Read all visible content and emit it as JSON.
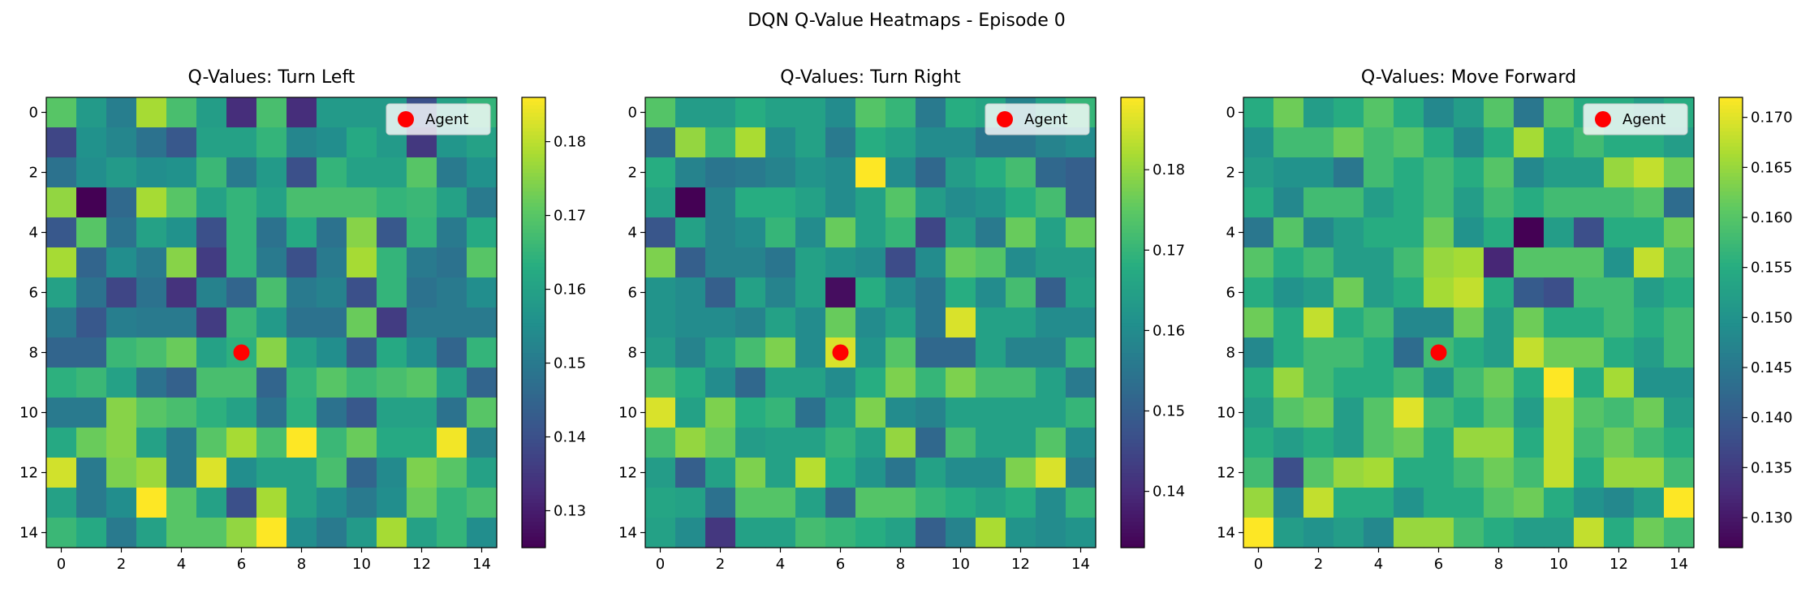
{
  "figure": {
    "title": "DQN Q-Value Heatmaps - Episode 0"
  },
  "chart_data": [
    {
      "type": "heatmap",
      "title": "Q-Values: Turn Left",
      "colormap": "viridis",
      "x_ticks": [
        0,
        2,
        4,
        6,
        8,
        10,
        12,
        14
      ],
      "y_ticks": [
        0,
        2,
        4,
        6,
        8,
        10,
        12,
        14
      ],
      "xlim": [
        -0.5,
        14.5
      ],
      "ylim": [
        14.5,
        -0.5
      ],
      "colorbar": {
        "min": 0.125,
        "max": 0.186,
        "ticks": [
          0.13,
          0.14,
          0.15,
          0.16,
          0.17,
          0.18
        ],
        "tick_labels": [
          "0.13",
          "0.14",
          "0.15",
          "0.16",
          "0.17",
          "0.18"
        ]
      },
      "agent": {
        "x": 6,
        "y": 8,
        "color": "#ff0000"
      },
      "legend": {
        "label": "Agent",
        "position": "upper right"
      },
      "grid": [
        [
          0.17,
          0.158,
          0.151,
          0.178,
          0.168,
          0.159,
          0.133,
          0.168,
          0.133,
          0.158,
          0.158,
          0.158,
          0.14,
          0.16,
          0.165
        ],
        [
          0.138,
          0.156,
          0.153,
          0.148,
          0.142,
          0.16,
          0.16,
          0.165,
          0.153,
          0.155,
          0.162,
          0.158,
          0.135,
          0.157,
          0.16
        ],
        [
          0.148,
          0.155,
          0.158,
          0.155,
          0.156,
          0.166,
          0.15,
          0.158,
          0.14,
          0.165,
          0.16,
          0.16,
          0.17,
          0.15,
          0.156
        ],
        [
          0.176,
          0.125,
          0.146,
          0.178,
          0.17,
          0.16,
          0.165,
          0.16,
          0.168,
          0.168,
          0.168,
          0.165,
          0.166,
          0.16,
          0.15
        ],
        [
          0.142,
          0.17,
          0.148,
          0.16,
          0.156,
          0.14,
          0.165,
          0.148,
          0.162,
          0.148,
          0.175,
          0.142,
          0.165,
          0.15,
          0.162
        ],
        [
          0.178,
          0.145,
          0.155,
          0.15,
          0.175,
          0.136,
          0.165,
          0.15,
          0.14,
          0.15,
          0.178,
          0.165,
          0.15,
          0.148,
          0.17
        ],
        [
          0.16,
          0.148,
          0.138,
          0.148,
          0.134,
          0.152,
          0.145,
          0.168,
          0.15,
          0.152,
          0.14,
          0.165,
          0.148,
          0.15,
          0.155
        ],
        [
          0.15,
          0.142,
          0.151,
          0.15,
          0.15,
          0.136,
          0.166,
          0.158,
          0.148,
          0.148,
          0.172,
          0.136,
          0.15,
          0.15,
          0.15
        ],
        [
          0.145,
          0.145,
          0.166,
          0.168,
          0.172,
          0.16,
          0.164,
          0.175,
          0.16,
          0.155,
          0.142,
          0.162,
          0.155,
          0.145,
          0.165
        ],
        [
          0.164,
          0.166,
          0.16,
          0.148,
          0.144,
          0.168,
          0.168,
          0.145,
          0.165,
          0.17,
          0.166,
          0.168,
          0.17,
          0.16,
          0.145
        ],
        [
          0.15,
          0.15,
          0.175,
          0.17,
          0.168,
          0.164,
          0.16,
          0.148,
          0.164,
          0.148,
          0.142,
          0.16,
          0.16,
          0.148,
          0.17
        ],
        [
          0.162,
          0.172,
          0.175,
          0.16,
          0.15,
          0.17,
          0.178,
          0.168,
          0.186,
          0.166,
          0.172,
          0.162,
          0.162,
          0.185,
          0.152
        ],
        [
          0.182,
          0.15,
          0.174,
          0.177,
          0.15,
          0.183,
          0.155,
          0.16,
          0.16,
          0.168,
          0.145,
          0.154,
          0.174,
          0.17,
          0.16
        ],
        [
          0.16,
          0.15,
          0.155,
          0.186,
          0.17,
          0.16,
          0.14,
          0.178,
          0.16,
          0.155,
          0.15,
          0.155,
          0.172,
          0.165,
          0.168
        ],
        [
          0.166,
          0.162,
          0.15,
          0.16,
          0.17,
          0.17,
          0.176,
          0.186,
          0.155,
          0.15,
          0.158,
          0.178,
          0.16,
          0.165,
          0.155
        ]
      ]
    },
    {
      "type": "heatmap",
      "title": "Q-Values: Turn Right",
      "colormap": "viridis",
      "x_ticks": [
        0,
        2,
        4,
        6,
        8,
        10,
        12,
        14
      ],
      "y_ticks": [
        0,
        2,
        4,
        6,
        8,
        10,
        12,
        14
      ],
      "xlim": [
        -0.5,
        14.5
      ],
      "ylim": [
        14.5,
        -0.5
      ],
      "colorbar": {
        "min": 0.133,
        "max": 0.189,
        "ticks": [
          0.14,
          0.15,
          0.16,
          0.17,
          0.18
        ],
        "tick_labels": [
          "0.14",
          "0.15",
          "0.16",
          "0.17",
          "0.18"
        ]
      },
      "agent": {
        "x": 6,
        "y": 8,
        "color": "#ff0000"
      },
      "legend": {
        "label": "Agent",
        "position": "upper right"
      },
      "grid": [
        [
          0.174,
          0.164,
          0.164,
          0.168,
          0.165,
          0.165,
          0.16,
          0.174,
          0.17,
          0.156,
          0.168,
          0.166,
          0.158,
          0.165,
          0.17
        ],
        [
          0.152,
          0.18,
          0.17,
          0.182,
          0.16,
          0.165,
          0.156,
          0.168,
          0.165,
          0.16,
          0.16,
          0.155,
          0.155,
          0.158,
          0.16
        ],
        [
          0.168,
          0.158,
          0.155,
          0.156,
          0.158,
          0.162,
          0.16,
          0.189,
          0.16,
          0.152,
          0.164,
          0.168,
          0.172,
          0.152,
          0.15
        ],
        [
          0.165,
          0.133,
          0.158,
          0.168,
          0.168,
          0.165,
          0.16,
          0.165,
          0.174,
          0.164,
          0.16,
          0.162,
          0.168,
          0.172,
          0.15
        ],
        [
          0.148,
          0.165,
          0.158,
          0.16,
          0.17,
          0.16,
          0.176,
          0.165,
          0.17,
          0.145,
          0.164,
          0.156,
          0.176,
          0.165,
          0.176
        ],
        [
          0.178,
          0.15,
          0.158,
          0.158,
          0.155,
          0.165,
          0.162,
          0.16,
          0.146,
          0.16,
          0.176,
          0.174,
          0.16,
          0.164,
          0.164
        ],
        [
          0.162,
          0.16,
          0.15,
          0.165,
          0.158,
          0.165,
          0.135,
          0.168,
          0.16,
          0.155,
          0.168,
          0.16,
          0.172,
          0.15,
          0.165
        ],
        [
          0.162,
          0.16,
          0.16,
          0.158,
          0.165,
          0.16,
          0.176,
          0.16,
          0.165,
          0.155,
          0.186,
          0.165,
          0.165,
          0.16,
          0.16
        ],
        [
          0.164,
          0.158,
          0.165,
          0.172,
          0.178,
          0.16,
          0.186,
          0.162,
          0.174,
          0.152,
          0.152,
          0.165,
          0.158,
          0.158,
          0.17
        ],
        [
          0.172,
          0.168,
          0.16,
          0.152,
          0.165,
          0.165,
          0.16,
          0.168,
          0.178,
          0.17,
          0.178,
          0.172,
          0.172,
          0.165,
          0.156
        ],
        [
          0.186,
          0.165,
          0.178,
          0.168,
          0.17,
          0.154,
          0.165,
          0.178,
          0.16,
          0.158,
          0.165,
          0.165,
          0.165,
          0.165,
          0.17
        ],
        [
          0.172,
          0.18,
          0.176,
          0.164,
          0.165,
          0.165,
          0.17,
          0.165,
          0.18,
          0.152,
          0.172,
          0.165,
          0.165,
          0.174,
          0.16
        ],
        [
          0.164,
          0.15,
          0.165,
          0.178,
          0.165,
          0.183,
          0.168,
          0.162,
          0.155,
          0.165,
          0.16,
          0.16,
          0.178,
          0.186,
          0.156
        ],
        [
          0.166,
          0.165,
          0.154,
          0.174,
          0.174,
          0.165,
          0.152,
          0.174,
          0.174,
          0.17,
          0.168,
          0.165,
          0.168,
          0.16,
          0.17
        ],
        [
          0.165,
          0.16,
          0.142,
          0.165,
          0.165,
          0.172,
          0.17,
          0.168,
          0.165,
          0.15,
          0.158,
          0.182,
          0.162,
          0.16,
          0.162
        ]
      ]
    },
    {
      "type": "heatmap",
      "title": "Q-Values: Move Forward",
      "colormap": "viridis",
      "x_ticks": [
        0,
        2,
        4,
        6,
        8,
        10,
        12,
        14
      ],
      "y_ticks": [
        0,
        2,
        4,
        6,
        8,
        10,
        12,
        14
      ],
      "xlim": [
        -0.5,
        14.5
      ],
      "ylim": [
        14.5,
        -0.5
      ],
      "colorbar": {
        "min": 0.127,
        "max": 0.172,
        "ticks": [
          0.13,
          0.135,
          0.14,
          0.145,
          0.15,
          0.155,
          0.16,
          0.165,
          0.17
        ],
        "tick_labels": [
          "0.130",
          "0.135",
          "0.140",
          "0.145",
          "0.150",
          "0.155",
          "0.160",
          "0.165",
          "0.170"
        ]
      },
      "agent": {
        "x": 6,
        "y": 8,
        "color": "#ff0000"
      },
      "legend": {
        "label": "Agent",
        "position": "upper right"
      },
      "grid": [
        [
          0.155,
          0.162,
          0.152,
          0.155,
          0.16,
          0.155,
          0.148,
          0.152,
          0.16,
          0.145,
          0.16,
          0.155,
          0.155,
          0.152,
          0.155
        ],
        [
          0.15,
          0.158,
          0.158,
          0.162,
          0.158,
          0.16,
          0.155,
          0.148,
          0.155,
          0.166,
          0.155,
          0.158,
          0.155,
          0.155,
          0.152
        ],
        [
          0.152,
          0.15,
          0.15,
          0.145,
          0.158,
          0.155,
          0.158,
          0.155,
          0.16,
          0.148,
          0.152,
          0.152,
          0.165,
          0.168,
          0.162
        ],
        [
          0.155,
          0.148,
          0.158,
          0.158,
          0.152,
          0.155,
          0.158,
          0.152,
          0.158,
          0.155,
          0.158,
          0.158,
          0.158,
          0.16,
          0.143
        ],
        [
          0.145,
          0.16,
          0.148,
          0.152,
          0.155,
          0.155,
          0.162,
          0.15,
          0.155,
          0.127,
          0.152,
          0.138,
          0.155,
          0.155,
          0.162
        ],
        [
          0.16,
          0.155,
          0.158,
          0.152,
          0.152,
          0.158,
          0.165,
          0.166,
          0.132,
          0.16,
          0.16,
          0.16,
          0.15,
          0.168,
          0.158
        ],
        [
          0.155,
          0.15,
          0.152,
          0.162,
          0.152,
          0.155,
          0.166,
          0.168,
          0.155,
          0.14,
          0.138,
          0.158,
          0.158,
          0.152,
          0.155
        ],
        [
          0.162,
          0.155,
          0.168,
          0.155,
          0.158,
          0.148,
          0.148,
          0.162,
          0.152,
          0.162,
          0.155,
          0.155,
          0.158,
          0.155,
          0.158
        ],
        [
          0.148,
          0.155,
          0.158,
          0.158,
          0.155,
          0.143,
          0.158,
          0.155,
          0.152,
          0.168,
          0.162,
          0.162,
          0.155,
          0.152,
          0.158
        ],
        [
          0.155,
          0.165,
          0.158,
          0.155,
          0.155,
          0.158,
          0.15,
          0.158,
          0.162,
          0.155,
          0.172,
          0.155,
          0.166,
          0.15,
          0.15
        ],
        [
          0.152,
          0.16,
          0.162,
          0.152,
          0.16,
          0.17,
          0.158,
          0.155,
          0.16,
          0.152,
          0.168,
          0.16,
          0.158,
          0.162,
          0.152
        ],
        [
          0.155,
          0.152,
          0.155,
          0.152,
          0.16,
          0.162,
          0.155,
          0.165,
          0.165,
          0.155,
          0.168,
          0.158,
          0.162,
          0.158,
          0.155
        ],
        [
          0.158,
          0.138,
          0.16,
          0.165,
          0.166,
          0.155,
          0.155,
          0.158,
          0.162,
          0.158,
          0.168,
          0.155,
          0.165,
          0.165,
          0.158
        ],
        [
          0.165,
          0.148,
          0.168,
          0.155,
          0.155,
          0.15,
          0.155,
          0.155,
          0.16,
          0.162,
          0.155,
          0.15,
          0.148,
          0.152,
          0.172
        ],
        [
          0.172,
          0.152,
          0.15,
          0.152,
          0.148,
          0.165,
          0.165,
          0.158,
          0.155,
          0.152,
          0.152,
          0.168,
          0.155,
          0.162,
          0.158
        ]
      ]
    }
  ]
}
